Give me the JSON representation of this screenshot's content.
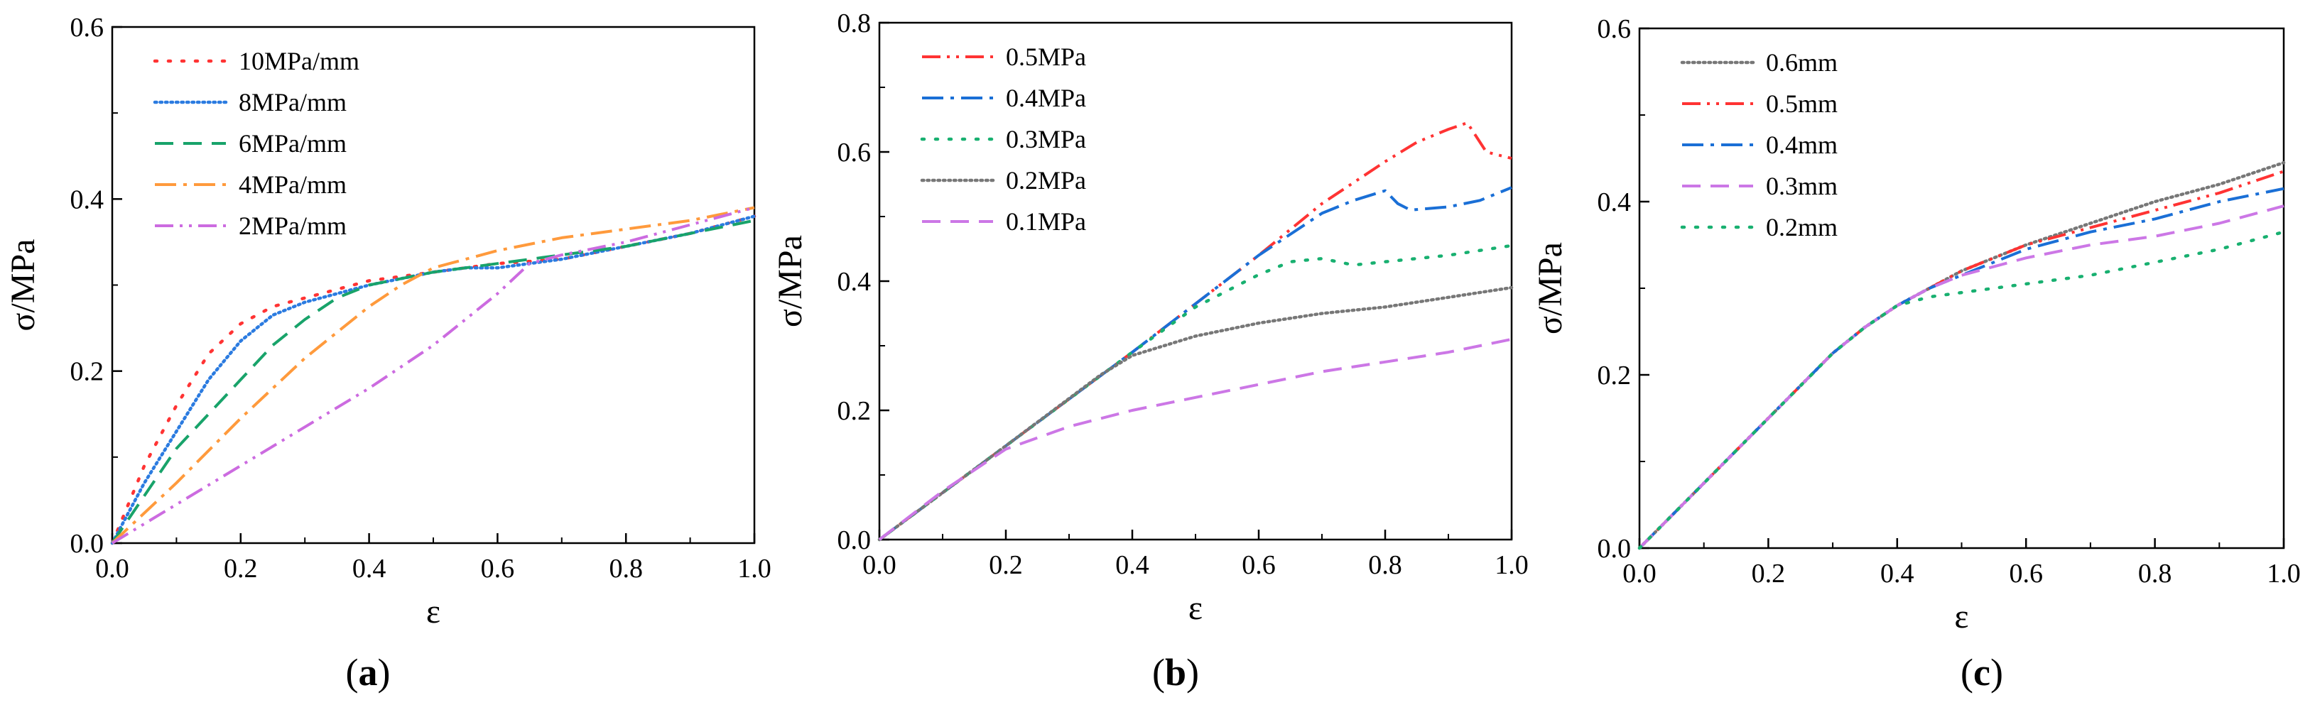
{
  "chart_data": [
    {
      "type": "line",
      "title": "",
      "caption_letter": "a",
      "xlabel": "ε",
      "ylabel": "σ/MPa",
      "xlim": [
        0,
        1
      ],
      "ylim": [
        0,
        0.6
      ],
      "xticks": [
        "0.0",
        "0.2",
        "0.4",
        "0.6",
        "0.8",
        "1.0"
      ],
      "yticks": [
        "0.0",
        "0.2",
        "0.4",
        "0.6"
      ],
      "legend_position": "top-left",
      "series": [
        {
          "name": "10MPa/mm",
          "color": "#ff3333",
          "style": "dotted-sparse",
          "x": [
            0,
            0.05,
            0.1,
            0.15,
            0.2,
            0.25,
            0.3,
            0.35,
            0.4,
            0.5,
            0.6,
            0.7,
            0.8,
            0.9,
            1.0
          ],
          "y": [
            0,
            0.09,
            0.16,
            0.22,
            0.255,
            0.275,
            0.285,
            0.295,
            0.305,
            0.315,
            0.325,
            0.33,
            0.345,
            0.36,
            0.38
          ]
        },
        {
          "name": "8MPa/mm",
          "color": "#2b7be0",
          "style": "dotted-dense",
          "x": [
            0,
            0.05,
            0.1,
            0.15,
            0.2,
            0.25,
            0.3,
            0.35,
            0.4,
            0.5,
            0.55,
            0.6,
            0.7,
            0.8,
            0.9,
            1.0
          ],
          "y": [
            0,
            0.07,
            0.13,
            0.19,
            0.235,
            0.265,
            0.28,
            0.29,
            0.3,
            0.315,
            0.32,
            0.32,
            0.33,
            0.345,
            0.36,
            0.38
          ]
        },
        {
          "name": "6MPa/mm",
          "color": "#18a36a",
          "style": "dashed",
          "x": [
            0,
            0.1,
            0.2,
            0.25,
            0.3,
            0.35,
            0.4,
            0.5,
            0.6,
            0.7,
            0.8,
            0.9,
            1.0
          ],
          "y": [
            0,
            0.11,
            0.19,
            0.23,
            0.26,
            0.285,
            0.3,
            0.315,
            0.325,
            0.335,
            0.345,
            0.36,
            0.375
          ]
        },
        {
          "name": "4MPa/mm",
          "color": "#ff9a3c",
          "style": "dashdot",
          "x": [
            0,
            0.1,
            0.2,
            0.3,
            0.4,
            0.45,
            0.5,
            0.6,
            0.7,
            0.8,
            0.9,
            1.0
          ],
          "y": [
            0,
            0.07,
            0.145,
            0.215,
            0.275,
            0.3,
            0.32,
            0.34,
            0.355,
            0.365,
            0.375,
            0.39
          ]
        },
        {
          "name": "2MPa/mm",
          "color": "#cc6be0",
          "style": "dashdotdot",
          "x": [
            0,
            0.1,
            0.2,
            0.3,
            0.4,
            0.5,
            0.6,
            0.65,
            0.7,
            0.8,
            0.9,
            1.0
          ],
          "y": [
            0,
            0.045,
            0.09,
            0.135,
            0.18,
            0.23,
            0.29,
            0.325,
            0.335,
            0.35,
            0.37,
            0.39
          ]
        }
      ]
    },
    {
      "type": "line",
      "title": "",
      "caption_letter": "b",
      "xlabel": "ε",
      "ylabel": "σ/MPa",
      "xlim": [
        0,
        1
      ],
      "ylim": [
        0,
        0.8
      ],
      "xticks": [
        "0.0",
        "0.2",
        "0.4",
        "0.6",
        "0.8",
        "1.0"
      ],
      "yticks": [
        "0.0",
        "0.2",
        "0.4",
        "0.6",
        "0.8"
      ],
      "legend_position": "top-left",
      "series": [
        {
          "name": "0.5MPa",
          "color": "#ff3333",
          "style": "dashdotdot",
          "x": [
            0,
            0.2,
            0.4,
            0.6,
            0.7,
            0.8,
            0.85,
            0.9,
            0.93,
            0.96,
            1.0
          ],
          "y": [
            0,
            0.145,
            0.29,
            0.44,
            0.52,
            0.585,
            0.615,
            0.635,
            0.645,
            0.6,
            0.59
          ]
        },
        {
          "name": "0.4MPa",
          "color": "#1a6fd6",
          "style": "dashdot",
          "x": [
            0,
            0.2,
            0.4,
            0.6,
            0.7,
            0.75,
            0.8,
            0.82,
            0.84,
            0.9,
            0.95,
            1.0
          ],
          "y": [
            0,
            0.145,
            0.29,
            0.44,
            0.505,
            0.525,
            0.54,
            0.52,
            0.51,
            0.515,
            0.525,
            0.545
          ]
        },
        {
          "name": "0.3MPa",
          "color": "#18b070",
          "style": "dotted-sparse",
          "x": [
            0,
            0.2,
            0.4,
            0.5,
            0.6,
            0.65,
            0.7,
            0.75,
            0.8,
            0.9,
            1.0
          ],
          "y": [
            0,
            0.145,
            0.29,
            0.36,
            0.41,
            0.43,
            0.435,
            0.425,
            0.43,
            0.44,
            0.455
          ]
        },
        {
          "name": "0.2MPa",
          "color": "#777777",
          "style": "dotted-dense",
          "x": [
            0,
            0.2,
            0.35,
            0.4,
            0.5,
            0.6,
            0.7,
            0.8,
            0.9,
            1.0
          ],
          "y": [
            0,
            0.145,
            0.255,
            0.285,
            0.315,
            0.335,
            0.35,
            0.36,
            0.375,
            0.39
          ]
        },
        {
          "name": "0.1MPa",
          "color": "#cc77e6",
          "style": "dashed",
          "x": [
            0,
            0.1,
            0.2,
            0.3,
            0.4,
            0.5,
            0.6,
            0.7,
            0.8,
            0.9,
            1.0
          ],
          "y": [
            0,
            0.075,
            0.14,
            0.175,
            0.2,
            0.22,
            0.24,
            0.26,
            0.275,
            0.29,
            0.31
          ]
        }
      ]
    },
    {
      "type": "line",
      "title": "",
      "caption_letter": "c",
      "xlabel": "ε",
      "ylabel": "σ/MPa",
      "xlim": [
        0,
        1
      ],
      "ylim": [
        0,
        0.6
      ],
      "xticks": [
        "0.0",
        "0.2",
        "0.4",
        "0.6",
        "0.8",
        "1.0"
      ],
      "yticks": [
        "0.0",
        "0.2",
        "0.4",
        "0.6"
      ],
      "legend_position": "top-left",
      "series": [
        {
          "name": "0.6mm",
          "color": "#777777",
          "style": "dotted-dense",
          "x": [
            0,
            0.1,
            0.2,
            0.3,
            0.35,
            0.4,
            0.45,
            0.5,
            0.6,
            0.7,
            0.8,
            0.9,
            1.0
          ],
          "y": [
            0,
            0.075,
            0.15,
            0.225,
            0.255,
            0.28,
            0.3,
            0.32,
            0.35,
            0.375,
            0.4,
            0.42,
            0.445
          ]
        },
        {
          "name": "0.5mm",
          "color": "#ff3333",
          "style": "dashdotdot",
          "x": [
            0,
            0.1,
            0.2,
            0.3,
            0.35,
            0.4,
            0.45,
            0.5,
            0.6,
            0.7,
            0.8,
            0.9,
            1.0
          ],
          "y": [
            0,
            0.075,
            0.15,
            0.225,
            0.255,
            0.28,
            0.3,
            0.32,
            0.35,
            0.37,
            0.39,
            0.41,
            0.435
          ]
        },
        {
          "name": "0.4mm",
          "color": "#1a6fd6",
          "style": "dashdot",
          "x": [
            0,
            0.1,
            0.2,
            0.3,
            0.35,
            0.4,
            0.45,
            0.5,
            0.6,
            0.7,
            0.8,
            0.9,
            1.0
          ],
          "y": [
            0,
            0.075,
            0.15,
            0.225,
            0.255,
            0.28,
            0.3,
            0.315,
            0.345,
            0.365,
            0.38,
            0.4,
            0.415
          ]
        },
        {
          "name": "0.3mm",
          "color": "#cc77e6",
          "style": "dashed",
          "x": [
            0,
            0.1,
            0.2,
            0.3,
            0.35,
            0.4,
            0.45,
            0.5,
            0.6,
            0.7,
            0.8,
            0.9,
            1.0
          ],
          "y": [
            0,
            0.075,
            0.15,
            0.225,
            0.255,
            0.28,
            0.3,
            0.315,
            0.335,
            0.35,
            0.36,
            0.375,
            0.395
          ]
        },
        {
          "name": "0.2mm",
          "color": "#18b070",
          "style": "dotted-sparse",
          "x": [
            0,
            0.1,
            0.2,
            0.3,
            0.35,
            0.4,
            0.45,
            0.5,
            0.6,
            0.7,
            0.8,
            0.9,
            1.0
          ],
          "y": [
            0,
            0.075,
            0.15,
            0.225,
            0.255,
            0.28,
            0.29,
            0.295,
            0.305,
            0.315,
            0.33,
            0.345,
            0.365
          ]
        }
      ]
    }
  ]
}
